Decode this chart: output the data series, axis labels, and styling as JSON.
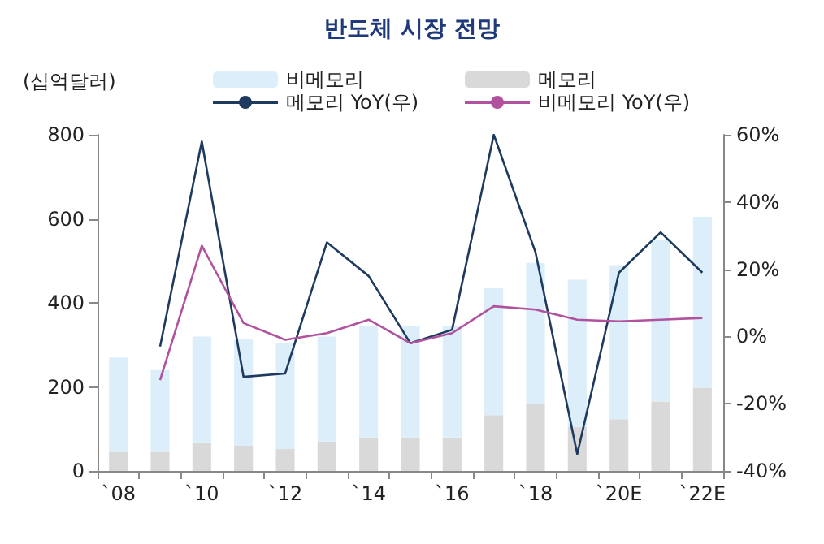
{
  "chart_data": {
    "type": "bar",
    "title": "반도체 시장 전망",
    "ylabel": "(십억달러)",
    "categories": [
      "`08",
      null,
      "`10",
      null,
      "`12",
      null,
      "`14",
      null,
      "`16",
      null,
      "`18",
      null,
      "`20E",
      null,
      "`22E"
    ],
    "stacked": true,
    "legend": "top",
    "grid": false,
    "ylim": [
      0,
      800
    ],
    "yticks": [
      0,
      200,
      400,
      600,
      800
    ],
    "y2lim": [
      -40,
      60
    ],
    "y2ticks": [
      {
        "value": -40,
        "label": "-40%"
      },
      {
        "value": -20,
        "label": "-20%"
      },
      {
        "value": 0,
        "label": "0%"
      },
      {
        "value": 20,
        "label": "20%"
      },
      {
        "value": 40,
        "label": "40%"
      },
      {
        "value": 60,
        "label": "60%"
      }
    ],
    "series": [
      {
        "name": "메모리",
        "color": "#d9d9d9",
        "values": [
          45,
          45,
          68,
          60,
          52,
          70,
          80,
          80,
          80,
          133,
          160,
          105,
          123,
          165,
          198
        ]
      },
      {
        "name": "비메모리",
        "color": "#dbeefa",
        "values": [
          225,
          195,
          252,
          255,
          253,
          250,
          265,
          265,
          265,
          302,
          335,
          350,
          367,
          385,
          407
        ]
      },
      {
        "name": "메모리 YoY(우)",
        "type": "line",
        "axis": "y2",
        "color": "#1f3a5f",
        "marker": "none",
        "values": [
          null,
          -3,
          58,
          -12,
          -11,
          28,
          18,
          -2,
          2,
          60,
          25,
          -35,
          19,
          31,
          19
        ]
      },
      {
        "name": "비메모리 YoY(우)",
        "type": "line",
        "axis": "y2",
        "color": "#b0529e",
        "marker": "none",
        "values": [
          null,
          -13,
          27,
          4,
          -1,
          1,
          5,
          -2,
          1,
          9,
          8,
          5,
          4.5,
          5,
          5.5
        ]
      }
    ]
  }
}
